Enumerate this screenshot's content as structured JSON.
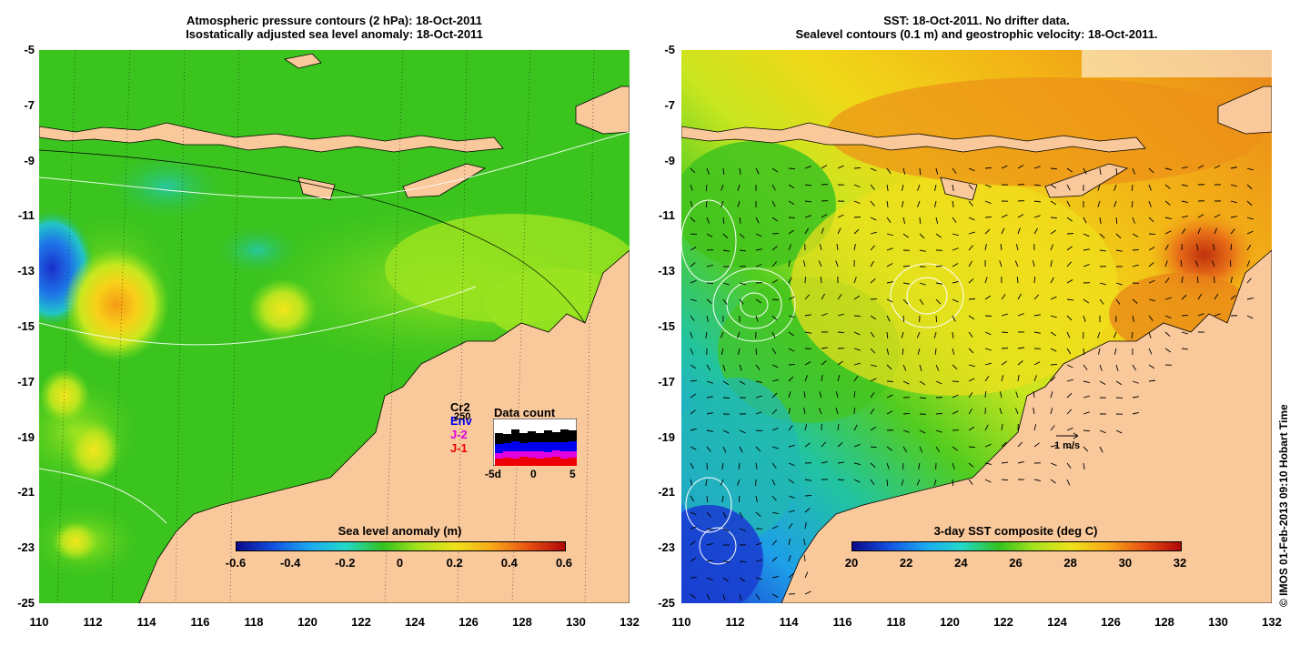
{
  "left_panel": {
    "title_line1": "Atmospheric pressure contours (2 hPa): 18-Oct-2011",
    "title_line2": "Isostatically adjusted sea level anomaly: 18-Oct-2011",
    "y_ticks": [
      "-5",
      "-7",
      "-9",
      "-11",
      "-13",
      "-15",
      "-17",
      "-19",
      "-21",
      "-23",
      "-25"
    ],
    "x_ticks": [
      "110",
      "112",
      "114",
      "116",
      "118",
      "120",
      "122",
      "124",
      "126",
      "128",
      "130",
      "132"
    ],
    "colorbar_title": "Sea level anomaly (m)",
    "colorbar_ticks": [
      "-0.6",
      "-0.4",
      "-0.2",
      "0",
      "0.2",
      "0.4",
      "0.6"
    ],
    "satellites": [
      {
        "label": "Cr2",
        "color": "#000000"
      },
      {
        "label": "Env",
        "color": "#0000ee"
      },
      {
        "label": "J-2",
        "color": "#e000e0"
      },
      {
        "label": "J-1",
        "color": "#ee0000"
      }
    ],
    "inset_title": "Data count",
    "inset_y_label": "250",
    "inset_x_ticks": [
      "-5d",
      "0",
      "5"
    ]
  },
  "right_panel": {
    "title_line1": "SST: 18-Oct-2011. No drifter data.",
    "title_line2": "Sealevel contours (0.1 m) and geostrophic velocity: 18-Oct-2011.",
    "y_ticks": [
      "-5",
      "-7",
      "-9",
      "-11",
      "-13",
      "-15",
      "-17",
      "-19",
      "-21",
      "-23",
      "-25"
    ],
    "x_ticks": [
      "110",
      "112",
      "114",
      "116",
      "118",
      "120",
      "122",
      "124",
      "126",
      "128",
      "130",
      "132"
    ],
    "colorbar_title": "3-day SST composite (deg C)",
    "colorbar_ticks": [
      "20",
      "22",
      "24",
      "26",
      "28",
      "30",
      "32"
    ],
    "velocity_scale_label": "1 m/s"
  },
  "credit": "© IMOS 01-Feb-2013 09:10 Hobart Time",
  "colors": {
    "land": "#f9c89b",
    "ocean_left": "#33c21f",
    "ocean_right_warm": "#f0d010"
  }
}
